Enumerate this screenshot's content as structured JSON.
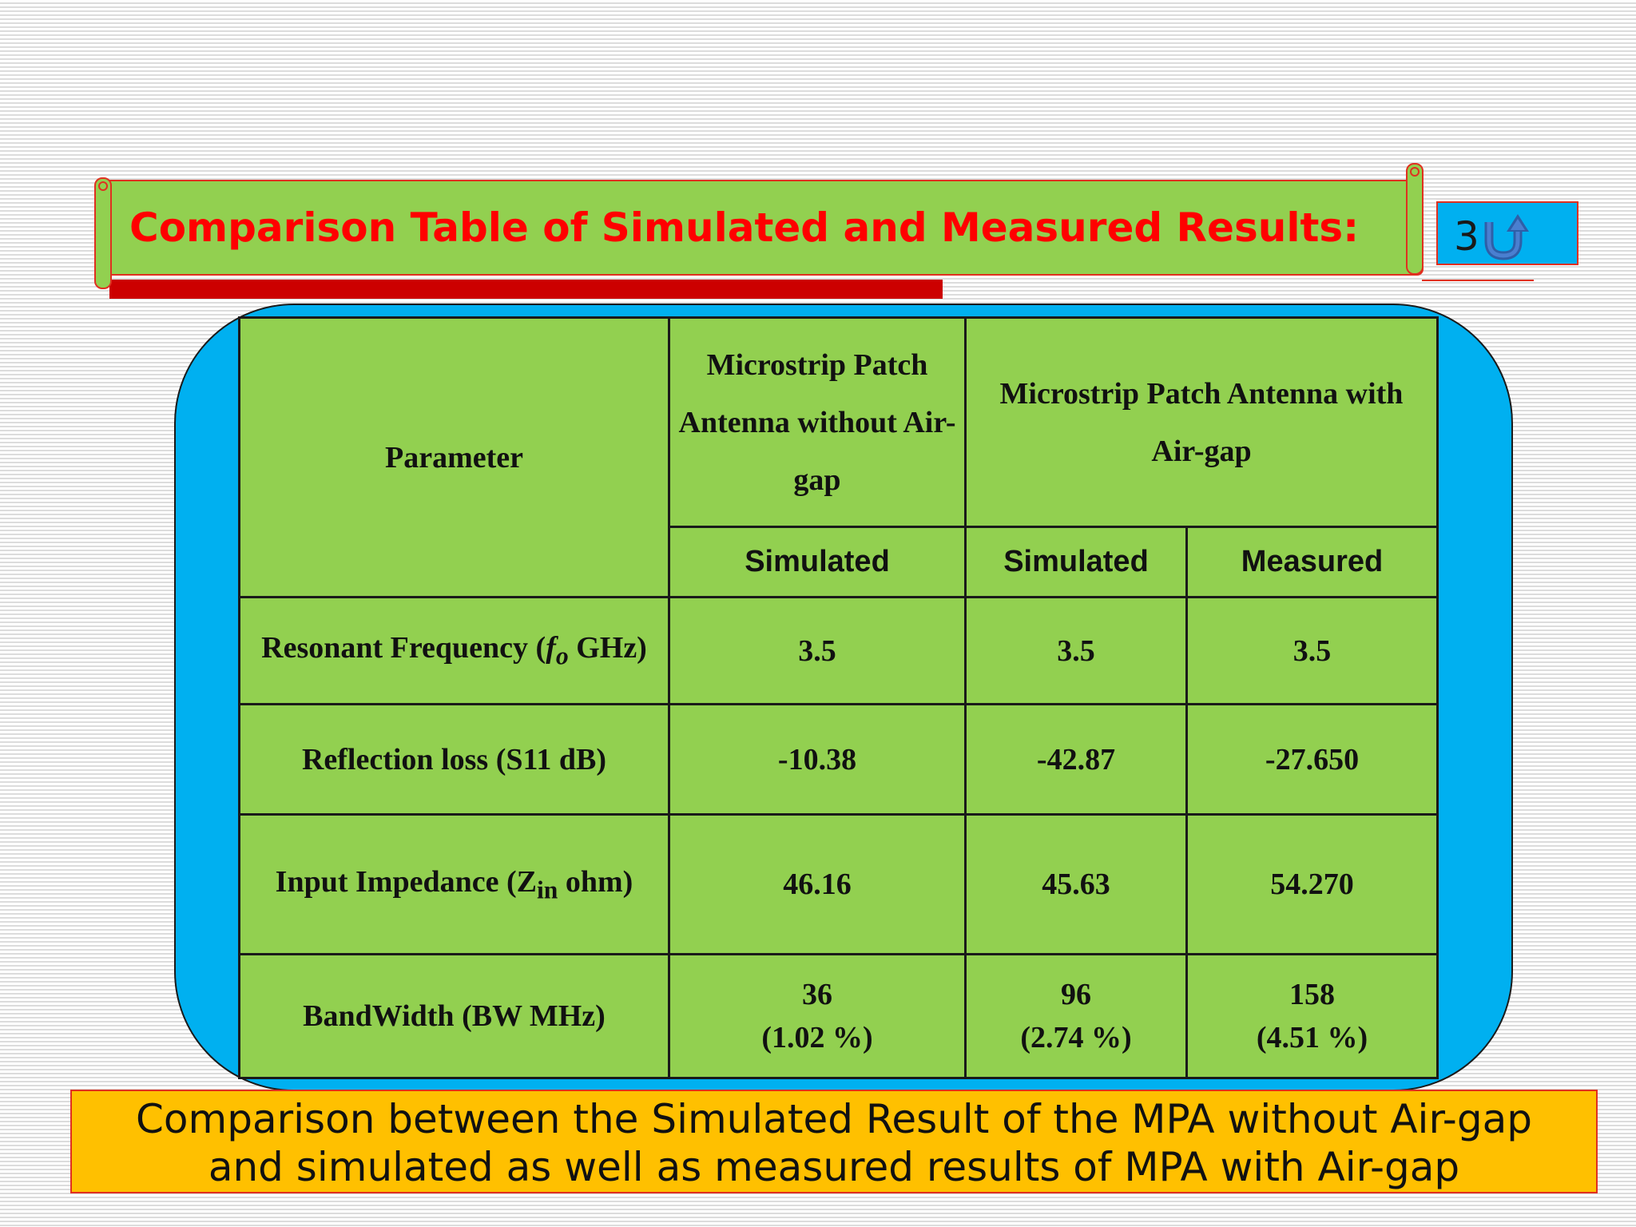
{
  "title": "Comparison Table of Simulated and Measured Results:",
  "slide_number": "3",
  "nav": {
    "return_icon": "return-arrow-icon"
  },
  "table": {
    "header": {
      "parameter": "Parameter",
      "col_without": "Microstrip Patch Antenna without Air-gap",
      "col_with": "Microstrip Patch Antenna with Air-gap",
      "sub_without_simulated": "Simulated",
      "sub_with_simulated": "Simulated",
      "sub_with_measured": "Measured"
    },
    "rows": [
      {
        "param_prefix": "Resonant Frequency (",
        "param_italic": "f",
        "param_sub": "o",
        "param_suffix": " GHz)",
        "without_sim": "3.5",
        "with_sim": "3.5",
        "with_meas": "3.5"
      },
      {
        "param": "Reflection loss (S11 dB)",
        "without_sim": "-10.38",
        "with_sim": "-42.87",
        "with_meas": "-27.650"
      },
      {
        "param_prefix": "Input Impedance (Z",
        "param_sub": "in",
        "param_suffix": " ohm)",
        "without_sim": "46.16",
        "with_sim": "45.63",
        "with_meas": "54.270"
      },
      {
        "param": "BandWidth (BW MHz)",
        "without_sim": "36",
        "without_sim_pct": "(1.02 %)",
        "with_sim": "96",
        "with_sim_pct": "(2.74 %)",
        "with_meas": "158",
        "with_meas_pct": "(4.51 %)"
      }
    ]
  },
  "caption": {
    "line1": "Comparison between the Simulated Result of the MPA without Air-gap",
    "line2": "and simulated as well as measured results of MPA with Air-gap"
  },
  "colors": {
    "title_red": "#ff0000",
    "panel_green": "#92d050",
    "backdrop_blue": "#00b0f0",
    "caption_amber": "#ffc000"
  }
}
